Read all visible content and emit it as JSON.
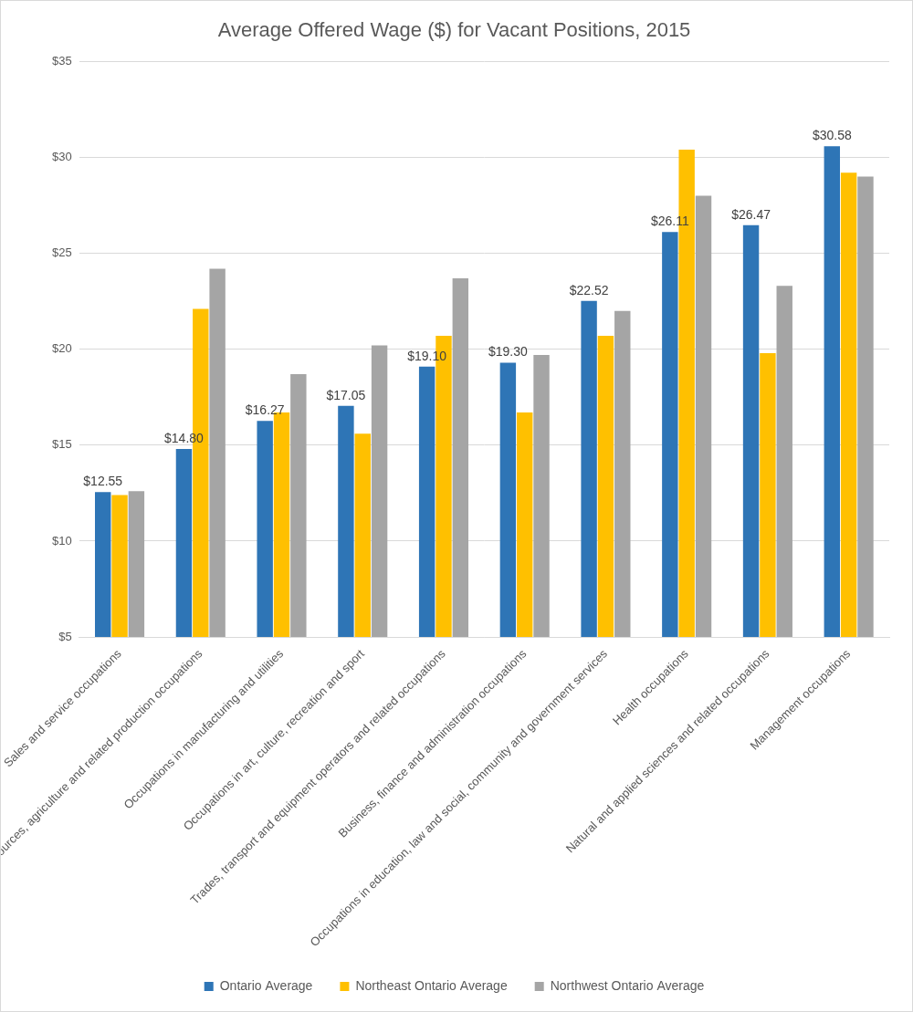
{
  "chart_data": {
    "type": "bar",
    "title": "Average Offered Wage ($) for Vacant Positions, 2015",
    "categories": [
      "Sales and service occupations",
      "Natural resources, agriculture and related production occupations",
      "Occupations in manufacturing and utilities",
      "Occupations in art, culture, recreation and sport",
      "Trades, transport and equipment operators and related occupations",
      "Business, finance and administration occupations",
      "Occupations in education, law and social, community and government services",
      "Health occupations",
      "Natural and applied sciences and related occupations",
      "Management occupations"
    ],
    "series": [
      {
        "name": "Ontario Average",
        "color": "#2e75b6",
        "values": [
          12.55,
          14.8,
          16.27,
          17.05,
          19.1,
          19.3,
          22.52,
          26.11,
          26.47,
          30.58
        ],
        "value_labels": [
          "$12.55",
          "$14.80",
          "$16.27",
          "$17.05",
          "$19.10",
          "$19.30",
          "$22.52",
          "$26.11",
          "$26.47",
          "$30.58"
        ]
      },
      {
        "name": "Northeast Ontario Average",
        "color": "#ffc000",
        "values": [
          12.4,
          22.1,
          16.7,
          15.6,
          20.7,
          16.7,
          20.7,
          30.4,
          19.8,
          29.2
        ]
      },
      {
        "name": "Northwest Ontario Average",
        "color": "#a5a5a5",
        "values": [
          12.6,
          24.2,
          18.7,
          20.2,
          23.7,
          19.7,
          22.0,
          28.0,
          23.3,
          29.0
        ]
      }
    ],
    "ylim": [
      5,
      35
    ],
    "yticks": [
      {
        "value": 5,
        "label": "$5"
      },
      {
        "value": 10,
        "label": "$10"
      },
      {
        "value": 15,
        "label": "$15"
      },
      {
        "value": 20,
        "label": "$20"
      },
      {
        "value": 25,
        "label": "$25"
      },
      {
        "value": 30,
        "label": "$30"
      },
      {
        "value": 35,
        "label": "$35"
      }
    ],
    "grid": true,
    "legend": "bottom",
    "data_labels": true
  }
}
